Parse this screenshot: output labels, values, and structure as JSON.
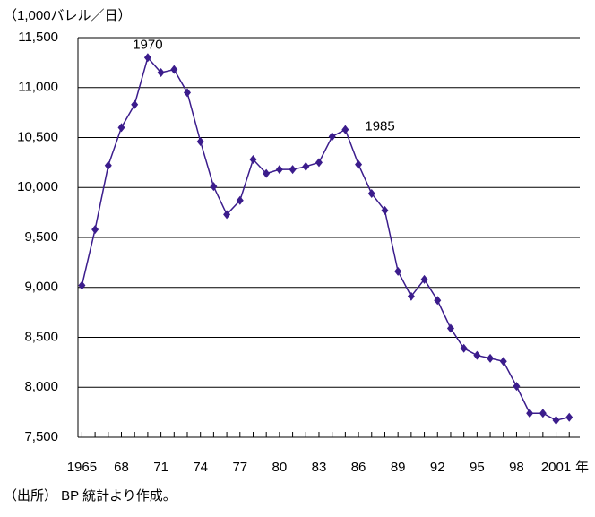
{
  "chart_data": {
    "type": "line",
    "y_axis_label": "（1,000バレル／日）",
    "x_axis_unit": "年",
    "source": "（出所） BP 統計より作成。",
    "x": [
      1965,
      1966,
      1967,
      1968,
      1969,
      1970,
      1971,
      1972,
      1973,
      1974,
      1975,
      1976,
      1977,
      1978,
      1979,
      1980,
      1981,
      1982,
      1983,
      1984,
      1985,
      1986,
      1987,
      1988,
      1989,
      1990,
      1991,
      1992,
      1993,
      1994,
      1995,
      1996,
      1997,
      1998,
      1999,
      2000,
      2001,
      2002
    ],
    "series": [
      {
        "color": "#3b1c8c",
        "values": [
          9020,
          9580,
          10220,
          10600,
          10830,
          11300,
          11150,
          11180,
          10950,
          10460,
          10010,
          9730,
          9870,
          10280,
          10140,
          10180,
          10180,
          10210,
          10250,
          10510,
          10580,
          10230,
          9940,
          9770,
          9160,
          8910,
          9080,
          8870,
          8590,
          8390,
          8320,
          8290,
          8260,
          8010,
          7740,
          7740,
          7670,
          7700
        ]
      }
    ],
    "annotations": [
      {
        "text": "1970",
        "x": 1970
      },
      {
        "text": "1985",
        "x": 1985
      }
    ],
    "xlim": [
      1964.7,
      2002.8
    ],
    "xticks": [
      1965,
      {
        "value": 1968,
        "label": "68"
      },
      {
        "value": 1971,
        "label": "71"
      },
      {
        "value": 1974,
        "label": "74"
      },
      {
        "value": 1977,
        "label": "77"
      },
      {
        "value": 1980,
        "label": "80"
      },
      {
        "value": 1983,
        "label": "83"
      },
      {
        "value": 1986,
        "label": "86"
      },
      {
        "value": 1989,
        "label": "89"
      },
      {
        "value": 1992,
        "label": "92"
      },
      {
        "value": 1995,
        "label": "95"
      },
      {
        "value": 1998,
        "label": "98"
      },
      2001
    ],
    "ylim": [
      7500,
      11500
    ],
    "yticks": [
      {
        "value": 7500,
        "label": "7,500"
      },
      {
        "value": 8000,
        "label": "8,000"
      },
      {
        "value": 8500,
        "label": "8,500"
      },
      {
        "value": 9000,
        "label": "9,000"
      },
      {
        "value": 9500,
        "label": "9,500"
      },
      {
        "value": 10000,
        "label": "10,000"
      },
      {
        "value": 10500,
        "label": "10,500"
      },
      {
        "value": 11000,
        "label": "11,000"
      },
      {
        "value": 11500,
        "label": "11,500"
      }
    ],
    "grid": true
  }
}
